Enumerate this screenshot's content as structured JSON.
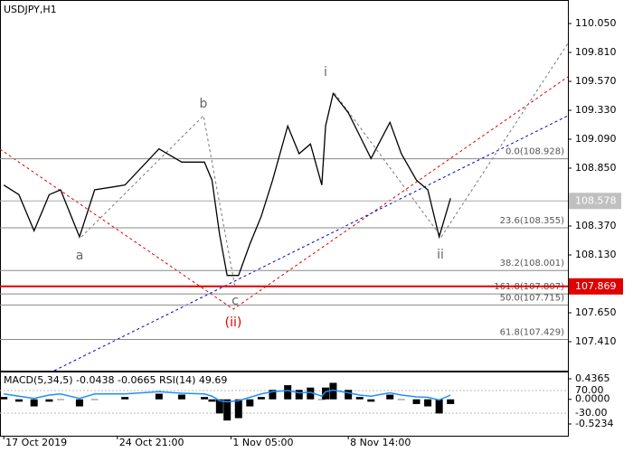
{
  "chart_data": [
    {
      "type": "line",
      "title": "USDJPY,H1",
      "color": "#000000",
      "x": [
        1,
        5,
        9,
        13,
        16,
        21,
        25,
        33,
        42,
        48,
        54,
        56,
        58,
        60,
        63,
        66,
        69,
        72,
        76,
        79,
        82,
        85,
        86,
        88,
        92,
        95,
        98,
        103,
        106,
        110,
        113,
        116,
        119
      ],
      "values": [
        108.71,
        108.63,
        108.33,
        108.63,
        108.67,
        108.28,
        108.67,
        108.71,
        109.01,
        108.9,
        108.9,
        108.75,
        108.3,
        107.96,
        107.96,
        108.22,
        108.45,
        108.75,
        109.2,
        108.97,
        109.05,
        108.71,
        109.2,
        109.47,
        109.31,
        109.12,
        108.93,
        109.23,
        108.97,
        108.75,
        108.67,
        108.28,
        108.6
      ],
      "xlim": [
        0,
        150
      ],
      "xticks": [
        {
          "value": 1,
          "label": "17 Oct 2019"
        },
        {
          "value": 31,
          "label": "24 Oct 21:00"
        },
        {
          "value": 61,
          "label": "1 Nov 05:00"
        },
        {
          "value": 92,
          "label": "8 Nov 14:00"
        }
      ],
      "ylim": [
        107.17,
        110.245
      ],
      "yticks": [
        {
          "value": 107.41,
          "label": "107.410"
        },
        {
          "value": 107.65,
          "label": "107.650"
        },
        {
          "value": 108.13,
          "label": "108.130"
        },
        {
          "value": 108.37,
          "label": "108.370"
        },
        {
          "value": 108.85,
          "label": "108.850"
        },
        {
          "value": 109.09,
          "label": "109.090"
        },
        {
          "value": 109.33,
          "label": "109.330"
        },
        {
          "value": 109.57,
          "label": "109.570"
        },
        {
          "value": 109.81,
          "label": "109.810"
        },
        {
          "value": 110.05,
          "label": "110.050"
        }
      ],
      "bid": 108.578,
      "line_level": 107.869,
      "fib_levels": [
        {
          "value": 108.928,
          "label": "0.0(108.928)"
        },
        {
          "value": 108.355,
          "label": "23.6(108.355)"
        },
        {
          "value": 108.001,
          "label": "38.2(108.001)"
        },
        {
          "value": 107.807,
          "label": "161.8(107.807)"
        },
        {
          "value": 107.715,
          "label": "50.0(107.715)"
        },
        {
          "value": 107.429,
          "label": "61.8(107.429)"
        }
      ],
      "annotations": [
        "a",
        "b",
        "c",
        "(ii)",
        "i",
        "ii"
      ]
    },
    {
      "type": "bar",
      "title": "MACD(5,34,5) -0.0438 -0.0665 RSI(14) 49.69",
      "x": [
        1,
        5,
        9,
        13,
        16,
        21,
        25,
        33,
        42,
        48,
        54,
        56,
        58,
        60,
        63,
        66,
        69,
        72,
        76,
        79,
        82,
        85,
        86,
        88,
        92,
        95,
        98,
        103,
        106,
        110,
        113,
        116,
        119
      ],
      "series": [
        {
          "color": "#000000",
          "values": [
            0.05,
            -0.05,
            -0.15,
            -0.05,
            0.0,
            -0.15,
            0.0,
            0.05,
            0.12,
            0.1,
            0.05,
            -0.05,
            -0.3,
            -0.45,
            -0.4,
            -0.15,
            0.05,
            0.2,
            0.3,
            0.2,
            0.25,
            0.0,
            0.25,
            0.35,
            0.2,
            0.05,
            -0.05,
            0.1,
            0.0,
            -0.1,
            -0.15,
            -0.3,
            -0.1
          ]
        },
        {
          "color": "#1e90ff",
          "axis": "y2",
          "values": [
            55,
            45,
            35,
            50,
            55,
            35,
            55,
            55,
            65,
            58,
            55,
            45,
            25,
            20,
            25,
            40,
            55,
            65,
            70,
            60,
            62,
            45,
            65,
            72,
            60,
            50,
            45,
            60,
            50,
            42,
            40,
            28,
            50
          ]
        }
      ],
      "ylim": [
        0.571,
        -0.773
      ],
      "yticks": [
        0.4365,
        {
          "value": 0,
          "label": "0.0000"
        },
        -0.5234
      ],
      "y2lim": [
        150,
        -130
      ],
      "y2ticks": [
        {
          "value": 70,
          "label": "70.00"
        },
        {
          "value": -30,
          "label": "-30.00"
        }
      ]
    }
  ]
}
